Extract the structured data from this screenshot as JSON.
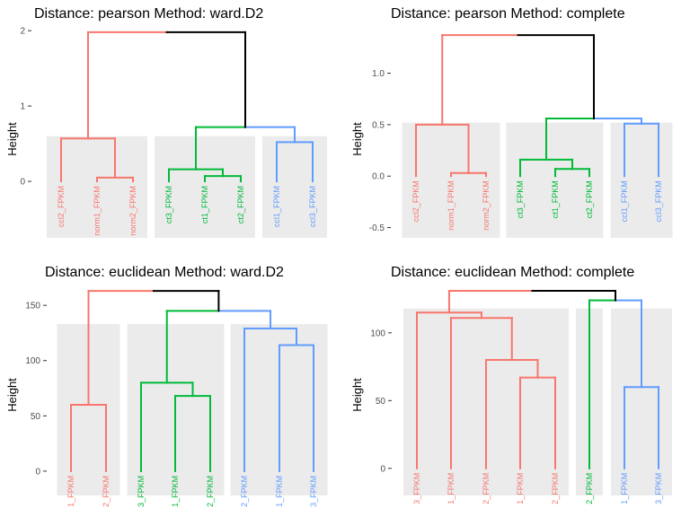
{
  "colors": {
    "red": "#F8766D",
    "green": "#00BA38",
    "blue": "#619CFF",
    "black": "#000000",
    "cluster_bg": "#EBEBEB"
  },
  "chart_data": [
    {
      "type": "dendrogram",
      "title": "Distance: pearson Method: ward.D2",
      "ylabel": "Height",
      "ylim": [
        -0.75,
        2.05
      ],
      "yticks": [
        0,
        1,
        2
      ],
      "tick_labels": [
        "0",
        "1",
        "2"
      ],
      "leaves": [
        "ccl2_FPKM",
        "norm1_FPKM",
        "norm2_FPKM",
        "ct3_FPKM",
        "ct1_FPKM",
        "ct2_FPKM",
        "ccl1_FPKM",
        "ccl3_FPKM"
      ],
      "leaf_colors": [
        "red",
        "red",
        "red",
        "green",
        "green",
        "green",
        "blue",
        "blue"
      ],
      "clusters": [
        {
          "from": 0,
          "to": 2,
          "top": 0.6
        },
        {
          "from": 3,
          "to": 5,
          "top": 0.6
        },
        {
          "from": 6,
          "to": 7,
          "top": 0.6
        }
      ],
      "merges": [
        {
          "left": -2,
          "right": -3,
          "height": 0.05,
          "color": "red"
        },
        {
          "left": -1,
          "right": 1,
          "height": 0.57,
          "color": "red"
        },
        {
          "left": -5,
          "right": -6,
          "height": 0.07,
          "color": "green"
        },
        {
          "left": -4,
          "right": 3,
          "height": 0.16,
          "color": "green"
        },
        {
          "left": -7,
          "right": -8,
          "height": 0.52,
          "color": "blue"
        },
        {
          "left": 4,
          "right": 5,
          "height": 0.72,
          "color": "green",
          "right_color": "blue"
        },
        {
          "left": 2,
          "right": 6,
          "height": 1.98,
          "color": "red",
          "right_color": "black"
        }
      ]
    },
    {
      "type": "dendrogram",
      "title": "Distance: pearson Method: complete",
      "ylabel": "Height",
      "ylim": [
        -0.6,
        1.45
      ],
      "yticks": [
        -0.5,
        0.0,
        0.5,
        1.0
      ],
      "tick_labels": [
        "-0.5",
        "0.0",
        "0.5",
        "1.0"
      ],
      "leaves": [
        "ccl2_FPKM",
        "norm1_FPKM",
        "norm2_FPKM",
        "ct3_FPKM",
        "ct1_FPKM",
        "ct2_FPKM",
        "ccl1_FPKM",
        "ccl3_FPKM"
      ],
      "leaf_colors": [
        "red",
        "red",
        "red",
        "green",
        "green",
        "green",
        "blue",
        "blue"
      ],
      "clusters": [
        {
          "from": 0,
          "to": 2,
          "top": 0.52
        },
        {
          "from": 3,
          "to": 5,
          "top": 0.52
        },
        {
          "from": 6,
          "to": 7,
          "top": 0.52
        }
      ],
      "merges": [
        {
          "left": -2,
          "right": -3,
          "height": 0.03,
          "color": "red"
        },
        {
          "left": -1,
          "right": 1,
          "height": 0.5,
          "color": "red"
        },
        {
          "left": -5,
          "right": -6,
          "height": 0.07,
          "color": "green"
        },
        {
          "left": -4,
          "right": 3,
          "height": 0.16,
          "color": "green"
        },
        {
          "left": -7,
          "right": -8,
          "height": 0.51,
          "color": "blue"
        },
        {
          "left": 4,
          "right": 5,
          "height": 0.56,
          "color": "green",
          "right_color": "blue"
        },
        {
          "left": 2,
          "right": 6,
          "height": 1.37,
          "color": "red",
          "right_color": "black"
        }
      ]
    },
    {
      "type": "dendrogram",
      "title": "Distance: euclidean Method: ward.D2",
      "ylabel": "Height",
      "ylim": [
        -22,
        168
      ],
      "yticks": [
        0,
        50,
        100,
        150
      ],
      "tick_labels": [
        "0",
        "50",
        "100",
        "150"
      ],
      "leaves": [
        "1_FPKM",
        "2_FPKM",
        "3_FPKM",
        "1_FPKM",
        "2_FPKM",
        "2_FPKM",
        "1_FPKM",
        "3_FPKM"
      ],
      "leaf_colors": [
        "red",
        "red",
        "green",
        "green",
        "green",
        "blue",
        "blue",
        "blue"
      ],
      "clusters": [
        {
          "from": 0,
          "to": 1,
          "top": 133
        },
        {
          "from": 2,
          "to": 4,
          "top": 133
        },
        {
          "from": 5,
          "to": 7,
          "top": 133
        }
      ],
      "merges": [
        {
          "left": -1,
          "right": -2,
          "height": 60,
          "color": "red"
        },
        {
          "left": -4,
          "right": -5,
          "height": 68,
          "color": "green"
        },
        {
          "left": -3,
          "right": 2,
          "height": 80,
          "color": "green"
        },
        {
          "left": -7,
          "right": -8,
          "height": 114,
          "color": "blue"
        },
        {
          "left": -6,
          "right": 4,
          "height": 129,
          "color": "blue"
        },
        {
          "left": 3,
          "right": 5,
          "height": 145,
          "color": "green",
          "right_color": "blue"
        },
        {
          "left": 1,
          "right": 6,
          "height": 163,
          "color": "red",
          "right_color": "black"
        }
      ]
    },
    {
      "type": "dendrogram",
      "title": "Distance: euclidean Method: complete",
      "ylabel": "Height",
      "ylim": [
        -20,
        135
      ],
      "yticks": [
        0,
        50,
        100
      ],
      "tick_labels": [
        "0",
        "50",
        "100"
      ],
      "leaves": [
        "3_FPKM",
        "1_FPKM",
        "2_FPKM",
        "1_FPKM",
        "2_FPKM",
        "2_FPKM",
        "1_FPKM",
        "3_FPKM"
      ],
      "leaf_colors": [
        "red",
        "red",
        "red",
        "red",
        "red",
        "green",
        "blue",
        "blue"
      ],
      "clusters": [
        {
          "from": 0,
          "to": 4,
          "top": 118
        },
        {
          "from": 5,
          "to": 5,
          "top": 118
        },
        {
          "from": 6,
          "to": 7,
          "top": 118
        }
      ],
      "merges": [
        {
          "left": -4,
          "right": -5,
          "height": 67,
          "color": "red"
        },
        {
          "left": -3,
          "right": 1,
          "height": 80,
          "color": "red"
        },
        {
          "left": -2,
          "right": 2,
          "height": 111,
          "color": "red"
        },
        {
          "left": -1,
          "right": 3,
          "height": 115,
          "color": "red"
        },
        {
          "left": -7,
          "right": -8,
          "height": 60,
          "color": "blue"
        },
        {
          "left": -6,
          "right": 5,
          "height": 124,
          "color": "green",
          "right_color": "blue"
        },
        {
          "left": 4,
          "right": 6,
          "height": 131,
          "color": "red",
          "right_color": "black"
        }
      ]
    }
  ]
}
